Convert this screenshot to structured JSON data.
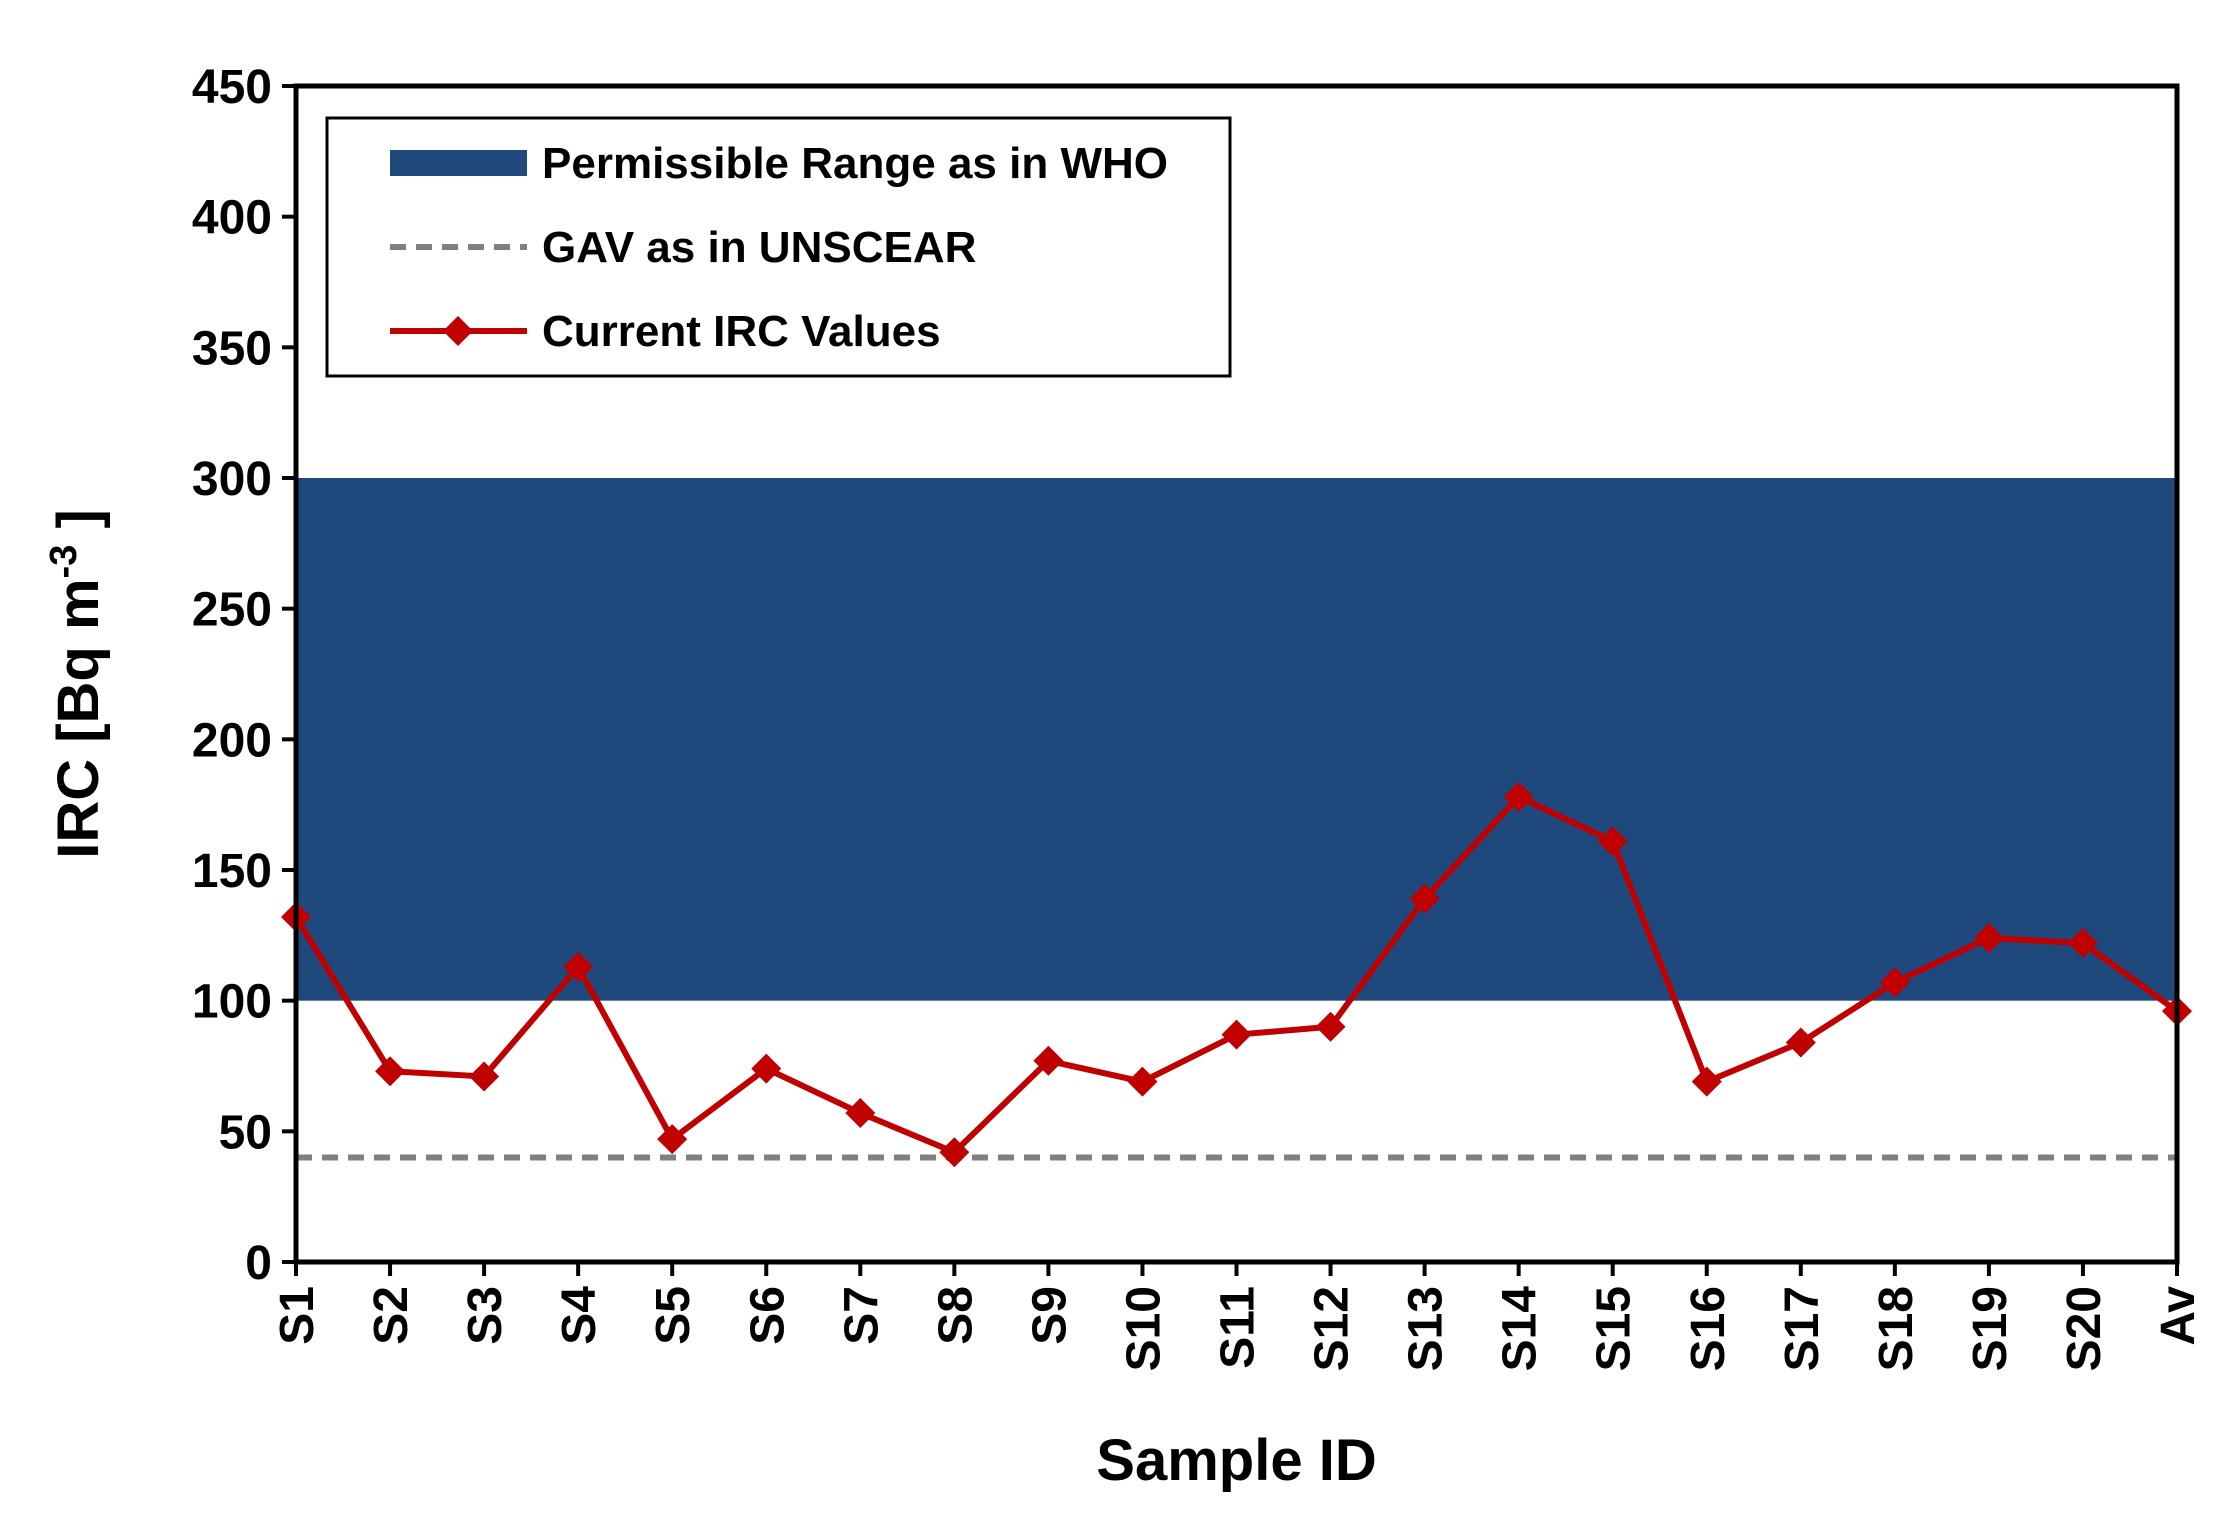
{
  "chart_data": {
    "type": "line",
    "title": "",
    "xlabel": "Sample ID",
    "ylabel": "IRC [Bq m",
    "ylabel_superscript": "-3",
    "ylabel_suffix": " ]",
    "ylim": [
      0,
      450
    ],
    "yticks": [
      0,
      50,
      100,
      150,
      200,
      250,
      300,
      350,
      400,
      450
    ],
    "categories": [
      "S1",
      "S2",
      "S3",
      "S4",
      "S5",
      "S6",
      "S7",
      "S8",
      "S9",
      "S10",
      "S11",
      "S12",
      "S13",
      "S14",
      "S15",
      "S16",
      "S17",
      "S18",
      "S19",
      "S20",
      "Av"
    ],
    "series": [
      {
        "name": "Current IRC Values",
        "color": "#C00000",
        "marker": "diamond",
        "values": [
          132,
          73,
          71,
          113,
          47,
          74,
          57,
          42,
          77,
          69,
          87,
          90,
          139,
          178,
          161,
          69,
          84,
          107,
          124,
          122,
          96
        ]
      }
    ],
    "band": {
      "name": "Permissible Range as in WHO",
      "from": 100,
      "to": 300,
      "color": "#1F497D"
    },
    "reference_line": {
      "name": "GAV as in UNSCEAR",
      "value": 40,
      "color": "#808080",
      "style": "dashed"
    },
    "legend": {
      "position": "top-left",
      "entries": [
        "Permissible Range as in WHO",
        "GAV as in UNSCEAR",
        "Current IRC Values"
      ]
    }
  }
}
